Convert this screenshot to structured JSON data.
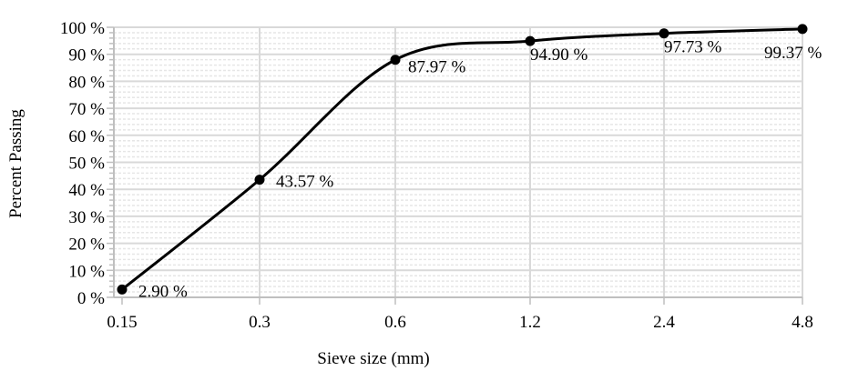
{
  "chart_data": {
    "type": "line",
    "title": "",
    "xlabel": "Sieve size (mm)",
    "ylabel": "Percent Passing",
    "categories": [
      "0.15",
      "0.3",
      "0.6",
      "1.2",
      "2.4",
      "4.8"
    ],
    "series": [
      {
        "name": "Percent Passing",
        "values": [
          2.9,
          43.57,
          87.97,
          94.9,
          97.73,
          99.37
        ],
        "labels": [
          "2.90 %",
          "43.57 %",
          "87.97 %",
          "94.90 %",
          "97.73 %",
          "99.37 %"
        ],
        "color": "#000000",
        "smooth": true,
        "marker": "circle"
      }
    ],
    "ylim": [
      0,
      100
    ],
    "yticks": [
      0,
      10,
      20,
      30,
      40,
      50,
      60,
      70,
      80,
      90,
      100
    ],
    "ytick_labels": [
      "0 %",
      "10 %",
      "20 %",
      "30 %",
      "40 %",
      "50 %",
      "60 %",
      "70 %",
      "80 %",
      "90 %",
      "100 %"
    ],
    "y_minor_step": 2,
    "grid": {
      "major": true,
      "minor": true,
      "vertical": true
    },
    "legend": "none",
    "colors": {
      "line": "#000000",
      "major_grid": "#d9d9d9",
      "minor_grid": "#e6e6e6",
      "axis": "#bfbfbf"
    }
  }
}
